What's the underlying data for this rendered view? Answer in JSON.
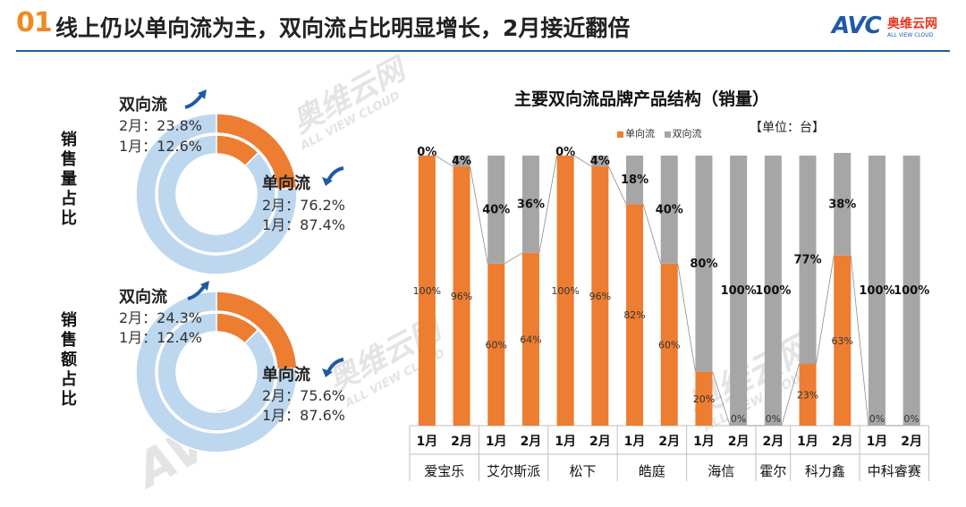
{
  "header": {
    "number": "01",
    "title": "线上仍以单向流为主，双向流占比明显增长，2月接近翻倍"
  },
  "brand": {
    "avc": "AVC",
    "cn": "奥维云网",
    "en": "ALL VIEW CLOUD"
  },
  "watermark": {
    "cn": "奥维云网",
    "en": "ALL VIEW CLOUD",
    "avc": "AVC"
  },
  "colors": {
    "single": "#ED7D31",
    "dual": "#A6A6A6",
    "outer_ring": "#BDD7EE",
    "inner_ring": "#BDD7EE",
    "accent": "#1E5AA8"
  },
  "volume_share": {
    "label": "销售量占比",
    "dual": {
      "title": "双向流",
      "feb": "2月：23.8%",
      "jan": "1月：12.6%"
    },
    "single": {
      "title": "单向流",
      "feb": "2月：76.2%",
      "jan": "1月：87.4%"
    }
  },
  "value_share": {
    "label": "销售额占比",
    "dual": {
      "title": "双向流",
      "feb": "2月：24.3%",
      "jan": "1月：12.4%"
    },
    "single": {
      "title": "单向流",
      "feb": "2月：75.6%",
      "jan": "1月：87.6%"
    }
  },
  "bar_chart": {
    "legend_single": "单向流",
    "legend_dual": "双向流",
    "unit": "【单位：台】"
  },
  "chart_data": [
    {
      "type": "pie",
      "title": "销售量占比",
      "rings": [
        {
          "name": "2月",
          "series": [
            {
              "name": "双向流",
              "value": 23.8
            },
            {
              "name": "单向流",
              "value": 76.2
            }
          ]
        },
        {
          "name": "1月",
          "series": [
            {
              "name": "双向流",
              "value": 12.6
            },
            {
              "name": "单向流",
              "value": 87.4
            }
          ]
        }
      ]
    },
    {
      "type": "pie",
      "title": "销售额占比",
      "rings": [
        {
          "name": "2月",
          "series": [
            {
              "name": "双向流",
              "value": 24.3
            },
            {
              "name": "单向流",
              "value": 75.6
            }
          ]
        },
        {
          "name": "1月",
          "series": [
            {
              "name": "双向流",
              "value": 12.4
            },
            {
              "name": "单向流",
              "value": 87.6
            }
          ]
        }
      ]
    },
    {
      "type": "bar",
      "stacked": true,
      "title": "主要双向流品牌产品结构（销量）",
      "groups": [
        "爱宝乐",
        "艾尔斯派",
        "松下",
        "皓庭",
        "海信",
        "霍尔",
        "科力鑫",
        "中科睿赛"
      ],
      "categories": [
        {
          "group": "爱宝乐",
          "month": "1月"
        },
        {
          "group": "爱宝乐",
          "month": "2月"
        },
        {
          "group": "艾尔斯派",
          "month": "1月"
        },
        {
          "group": "艾尔斯派",
          "month": "2月"
        },
        {
          "group": "松下",
          "month": "1月"
        },
        {
          "group": "松下",
          "month": "2月"
        },
        {
          "group": "皓庭",
          "month": "1月"
        },
        {
          "group": "皓庭",
          "month": "2月"
        },
        {
          "group": "海信",
          "month": "1月"
        },
        {
          "group": "海信",
          "month": "2月"
        },
        {
          "group": "霍尔",
          "month": "2月"
        },
        {
          "group": "科力鑫",
          "month": "1月"
        },
        {
          "group": "科力鑫",
          "month": "2月"
        },
        {
          "group": "中科睿赛",
          "month": "1月"
        },
        {
          "group": "中科睿赛",
          "month": "2月"
        }
      ],
      "series": [
        {
          "name": "单向流",
          "values": [
            100,
            96,
            60,
            64,
            100,
            96,
            82,
            60,
            20,
            0,
            0,
            23,
            63,
            0,
            0
          ],
          "labels": [
            "100%",
            "96%",
            "60%",
            "64%",
            "100%",
            "96%",
            "82%",
            "60%",
            "20%",
            "0%",
            "0%",
            "23%",
            "63%",
            "0%",
            "0%"
          ]
        },
        {
          "name": "双向流",
          "values": [
            0,
            4,
            40,
            36,
            0,
            4,
            18,
            40,
            80,
            100,
            100,
            77,
            38,
            100,
            100
          ],
          "labels": [
            "0%",
            "4%",
            "40%",
            "36%",
            "0%",
            "4%",
            "18%",
            "40%",
            "80%",
            "100%",
            "100%",
            "77%",
            "38%",
            "100%",
            "100%"
          ]
        }
      ],
      "ylim": [
        0,
        100
      ]
    }
  ]
}
